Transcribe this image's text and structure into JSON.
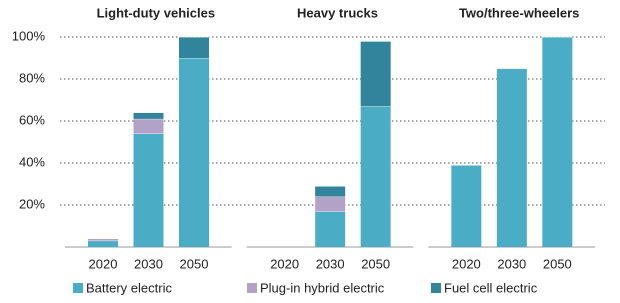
{
  "chart_data": {
    "type": "bar",
    "stacked": true,
    "panels": [
      "Light-duty vehicles",
      "Heavy trucks",
      "Two/three-wheelers"
    ],
    "categories": [
      "2020",
      "2030",
      "2050",
      "2020",
      "2030",
      "2050",
      "2020",
      "2030",
      "2050"
    ],
    "series": [
      {
        "name": "Battery electric",
        "color": "#4bacc6",
        "values": [
          3,
          54,
          90,
          0,
          17,
          67,
          39,
          85,
          100
        ]
      },
      {
        "name": "Plug-in hybrid electric",
        "color": "#b3a2c7",
        "values": [
          1,
          7,
          0,
          0,
          7,
          0,
          0,
          0,
          0
        ]
      },
      {
        "name": "Fuel cell electric",
        "color": "#31849b",
        "values": [
          0,
          3,
          10,
          0,
          5,
          31,
          0,
          0,
          0
        ]
      }
    ],
    "ylim": [
      0,
      100
    ],
    "yticks": [
      {
        "value": 20,
        "label": "20%"
      },
      {
        "value": 40,
        "label": "40%"
      },
      {
        "value": 60,
        "label": "60%"
      },
      {
        "value": 80,
        "label": "80%"
      },
      {
        "value": 100,
        "label": "100%"
      }
    ],
    "grid": true
  }
}
